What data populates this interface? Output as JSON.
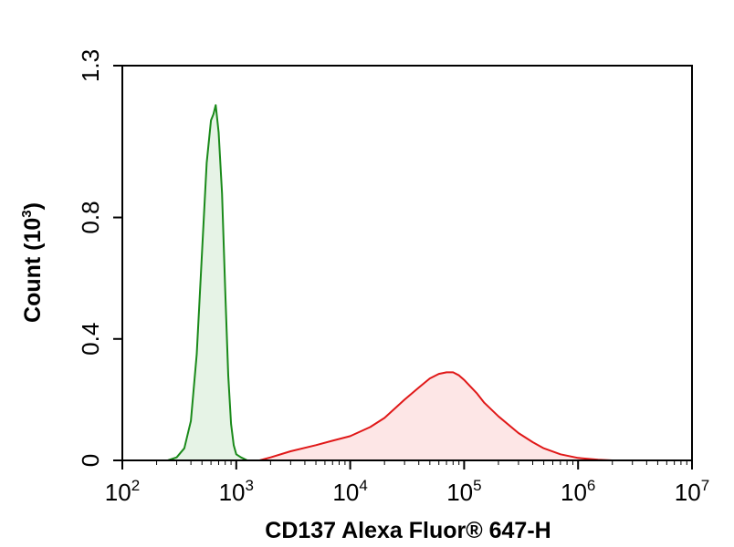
{
  "chart_data": {
    "type": "area",
    "title": "",
    "xlabel": "CD137 Alexa Fluor® 647-H",
    "ylabel_main": "Count (10",
    "ylabel_exp": "3",
    "ylabel_close": ")",
    "x_scale": "log",
    "xlim": [
      100,
      10000000
    ],
    "ylim": [
      0,
      1.3
    ],
    "x_ticks": [
      {
        "value": 100,
        "base": "10",
        "exp": "2"
      },
      {
        "value": 1000,
        "base": "10",
        "exp": "3"
      },
      {
        "value": 10000,
        "base": "10",
        "exp": "4"
      },
      {
        "value": 100000,
        "base": "10",
        "exp": "5"
      },
      {
        "value": 1000000,
        "base": "10",
        "exp": "6"
      },
      {
        "value": 10000000,
        "base": "10",
        "exp": "7"
      }
    ],
    "y_ticks": [
      {
        "value": 0,
        "label": "0"
      },
      {
        "value": 0.4,
        "label": "0.4"
      },
      {
        "value": 0.8,
        "label": "0.8"
      },
      {
        "value": 1.3,
        "label": "1.3"
      }
    ],
    "grid": false,
    "legend": "none",
    "series": [
      {
        "color": "#1a8a1a",
        "fill": "#e6f3e6",
        "x": [
          250,
          300,
          350,
          400,
          450,
          500,
          550,
          600,
          630,
          660,
          700,
          750,
          800,
          850,
          900,
          950,
          1000,
          1100,
          1250,
          1500
        ],
        "y": [
          0,
          0.01,
          0.04,
          0.13,
          0.35,
          0.68,
          0.98,
          1.12,
          1.14,
          1.17,
          1.08,
          0.88,
          0.56,
          0.28,
          0.12,
          0.05,
          0.02,
          0.01,
          0.0,
          0
        ]
      },
      {
        "color": "#e01818",
        "fill": "#fde6e6",
        "x": [
          1600,
          2000,
          3000,
          5000,
          7000,
          10000,
          15000,
          20000,
          30000,
          40000,
          50000,
          60000,
          70000,
          80000,
          90000,
          100000,
          130000,
          150000,
          200000,
          300000,
          400000,
          500000,
          700000,
          1000000,
          1500000,
          2000000
        ],
        "y": [
          0,
          0.01,
          0.03,
          0.05,
          0.065,
          0.08,
          0.11,
          0.14,
          0.2,
          0.24,
          0.27,
          0.285,
          0.29,
          0.29,
          0.28,
          0.265,
          0.22,
          0.19,
          0.145,
          0.09,
          0.06,
          0.04,
          0.02,
          0.008,
          0.002,
          0
        ]
      }
    ]
  }
}
